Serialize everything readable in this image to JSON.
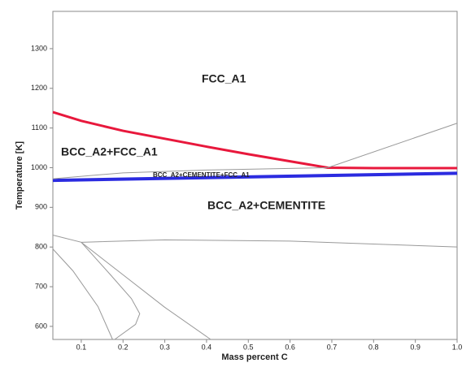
{
  "chart_data": {
    "type": "line",
    "x_label": "Mass percent C",
    "y_label": "Temperature [K]",
    "xlim": [
      0.032,
      1.0
    ],
    "ylim": [
      567,
      1394
    ],
    "xticks": [
      0.1,
      0.2,
      0.3,
      0.4,
      0.5,
      0.6,
      0.7,
      0.8,
      0.9,
      {
        "value": 1,
        "label": "1.0"
      }
    ],
    "yticks": [
      600,
      700,
      800,
      900,
      1000,
      1100,
      1200,
      1300
    ],
    "annotations": [
      "FCC_A1",
      "BCC_A2+FCC_A1",
      "BCC_A2+CEMENTITE+FCC_A1",
      "BCC_A2+CEMENTITE"
    ],
    "series": [
      {
        "color": "#e8183c",
        "width": 3,
        "x": [
          0.032,
          0.1,
          0.2,
          0.3,
          0.4,
          0.5,
          0.6,
          0.69,
          0.8,
          1.0
        ],
        "y": [
          1140,
          1118,
          1093,
          1073,
          1053,
          1034,
          1016,
          1000,
          999,
          999
        ]
      },
      {
        "color": "#2b2be0",
        "width": 4,
        "x": [
          0.032,
          1.0
        ],
        "y": [
          968,
          986
        ]
      },
      {
        "color": "#999999",
        "width": 1,
        "x": [
          0.032,
          0.2,
          0.4,
          0.69
        ],
        "y": [
          972,
          987,
          994,
          1000
        ]
      },
      {
        "color": "#999999",
        "width": 1,
        "x": [
          0.69,
          1.0
        ],
        "y": [
          1000,
          1112
        ]
      },
      {
        "color": "#999999",
        "width": 1,
        "x": [
          0.1,
          0.3,
          0.6,
          1.0
        ],
        "y": [
          812,
          818,
          815,
          800
        ]
      },
      {
        "color": "#999999",
        "width": 1,
        "x": [
          0.032,
          0.1,
          0.2,
          0.3,
          0.41
        ],
        "y": [
          830,
          812,
          730,
          648,
          567
        ]
      },
      {
        "color": "#999999",
        "width": 1,
        "x": [
          0.1,
          0.17,
          0.22,
          0.24,
          0.23,
          0.18
        ],
        "y": [
          812,
          730,
          670,
          632,
          605,
          567
        ]
      },
      {
        "color": "#999999",
        "width": 1,
        "x": [
          0.032,
          0.08,
          0.14,
          0.175
        ],
        "y": [
          795,
          740,
          650,
          567
        ]
      }
    ]
  }
}
